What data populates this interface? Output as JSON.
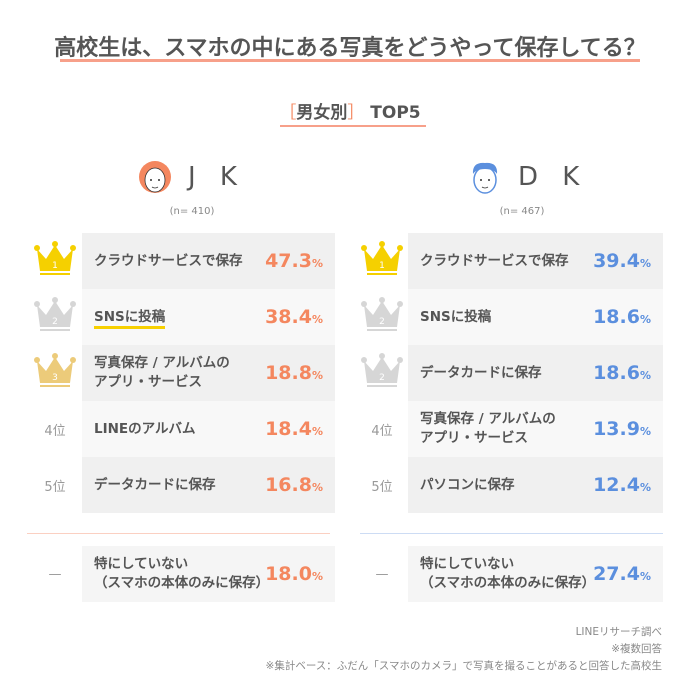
{
  "title": "高校生は、スマホの中にある写真をどうやって保存してる？",
  "subtitle": {
    "bracket_open": "［",
    "label": "男女別",
    "bracket_close": "］",
    "suffix": "TOP5"
  },
  "colors": {
    "jk": "#f4875f",
    "dk": "#5b8fde",
    "gold": "#f5d000",
    "silver": "#d6d6d6",
    "bronze": "#eccb7a"
  },
  "chart_data": {
    "type": "table",
    "groups": [
      {
        "name": "J K",
        "n": "(n= 410)",
        "icon": "girl-face-icon",
        "rows": [
          {
            "rank": "1",
            "rank_style": "gold-crown",
            "label": "クラウドサービスで保存",
            "value": 47.3,
            "value_text": "47.3",
            "unit": "%"
          },
          {
            "rank": "2",
            "rank_style": "silver-crown",
            "label": "SNSに投稿",
            "value": 38.4,
            "value_text": "38.4",
            "unit": "%",
            "highlight": true
          },
          {
            "rank": "3",
            "rank_style": "bronze-crown",
            "label": "写真保存 / アルバムの\nアプリ・サービス",
            "value": 18.8,
            "value_text": "18.8",
            "unit": "%"
          },
          {
            "rank": "4位",
            "label": "LINEのアルバム",
            "value": 18.4,
            "value_text": "18.4",
            "unit": "%"
          },
          {
            "rank": "5位",
            "label": "データカードに保存",
            "value": 16.8,
            "value_text": "16.8",
            "unit": "%"
          }
        ],
        "other": {
          "rank": "—",
          "label": "特にしていない\n（スマホの本体のみに保存）",
          "value": 18.0,
          "value_text": "18.0",
          "unit": "%"
        }
      },
      {
        "name": "D K",
        "n": "(n= 467)",
        "icon": "boy-face-icon",
        "rows": [
          {
            "rank": "1",
            "rank_style": "gold-crown",
            "label": "クラウドサービスで保存",
            "value": 39.4,
            "value_text": "39.4",
            "unit": "%"
          },
          {
            "rank": "2",
            "rank_style": "silver-crown",
            "label": "SNSに投稿",
            "value": 18.6,
            "value_text": "18.6",
            "unit": "%"
          },
          {
            "rank": "2",
            "rank_style": "silver-crown",
            "label": "データカードに保存",
            "value": 18.6,
            "value_text": "18.6",
            "unit": "%"
          },
          {
            "rank": "4位",
            "label": "写真保存 / アルバムの\nアプリ・サービス",
            "value": 13.9,
            "value_text": "13.9",
            "unit": "%"
          },
          {
            "rank": "5位",
            "label": "パソコンに保存",
            "value": 12.4,
            "value_text": "12.4",
            "unit": "%"
          }
        ],
        "other": {
          "rank": "—",
          "label": "特にしていない\n（スマホの本体のみに保存）",
          "value": 27.4,
          "value_text": "27.4",
          "unit": "%"
        }
      }
    ]
  },
  "footer": [
    "LINEリサーチ調べ",
    "※複数回答",
    "※集計ベース：ふだん「スマホのカメラ」で写真を撮ることがあると回答した高校生"
  ]
}
